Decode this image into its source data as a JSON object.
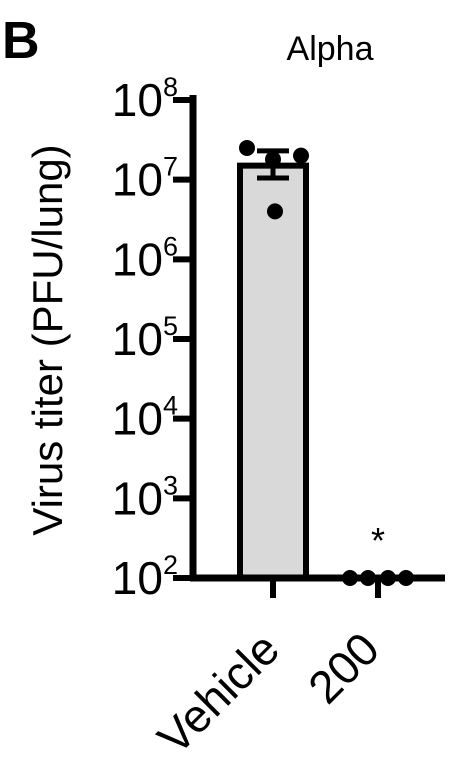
{
  "panel_label": "B",
  "chart_data": {
    "type": "bar",
    "title": "Alpha",
    "ylabel": "Virus titer (PFU/lung)",
    "xlabel": "",
    "yscale": "log10",
    "ylim": [
      100,
      100000000
    ],
    "y_tick_exponents": [
      "2",
      "3",
      "4",
      "5",
      "6",
      "7",
      "8"
    ],
    "y_tick_base": "10",
    "categories": [
      "Vehicle",
      "200"
    ],
    "values": [
      15000000,
      100
    ],
    "error_bars": [
      [
        10500000,
        23000000
      ],
      null
    ],
    "points": [
      [
        25000000,
        18000000,
        20000000,
        4000000
      ],
      [
        100,
        100,
        100,
        100
      ]
    ],
    "annotations": [
      {
        "category": "200",
        "text": "*"
      }
    ],
    "bar_fill": "#d9d9d9",
    "stroke": "#000000"
  }
}
